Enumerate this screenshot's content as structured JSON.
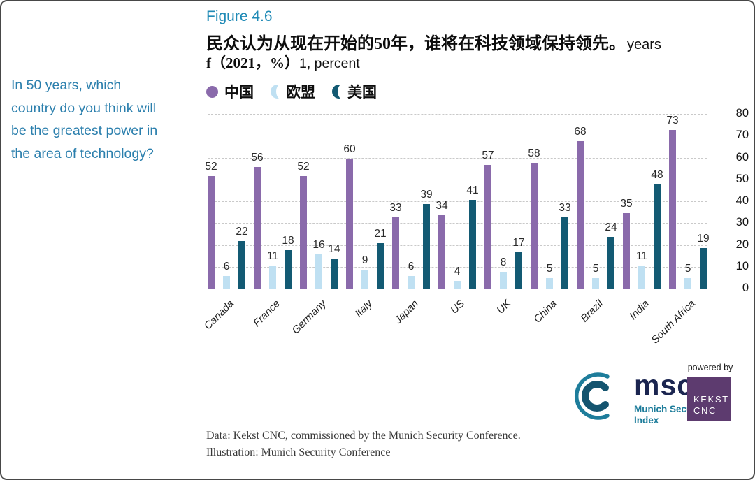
{
  "figure_label": "Figure 4.6",
  "title": {
    "line1_cn": "民众认为从现在开始的50年，谁将在科技领域保持领先。",
    "line1_en": "years",
    "line2_prefix": "f（2021，%）",
    "line2_suffix": "1, percent"
  },
  "sidebar": {
    "lines": [
      "In 50 years, which",
      "country do you think will",
      "be the greatest power in",
      "the area of technology?"
    ]
  },
  "chart_data": {
    "type": "bar",
    "title": "民众认为从现在开始的50年，谁将在科技领域保持领先。years f（2021，%）1, percent",
    "categories": [
      "Canada",
      "France",
      "Germany",
      "Italy",
      "Japan",
      "US",
      "UK",
      "China",
      "Brazil",
      "India",
      "South Africa"
    ],
    "series": [
      {
        "name": "中国",
        "color": "#8a6aab",
        "values": [
          52,
          56,
          52,
          60,
          33,
          34,
          57,
          58,
          68,
          35,
          73
        ]
      },
      {
        "name": "欧盟",
        "color": "#bfe0f2",
        "values": [
          6,
          11,
          16,
          9,
          6,
          4,
          8,
          5,
          5,
          11,
          5
        ]
      },
      {
        "name": "美国",
        "color": "#135a73",
        "values": [
          22,
          18,
          14,
          21,
          39,
          41,
          17,
          33,
          24,
          48,
          19
        ]
      }
    ],
    "xlabel": "",
    "ylabel": "",
    "ylim": [
      0,
      80
    ],
    "yticks": [
      0,
      10,
      20,
      30,
      40,
      50,
      60,
      70,
      80
    ],
    "ytick_side": "right",
    "grid": "horizontal-dashed",
    "data_labels": true,
    "legend_position": "top"
  },
  "footer": {
    "source_line1": "Data: Kekst CNC, commissioned by the Munich Security Conference.",
    "source_line2": "Illustration: Munich Security Conference",
    "powered_by": "powered by",
    "msc_logo": {
      "text": "msc",
      "subtext_line1": "Munich Security",
      "subtext_line2": "Index"
    },
    "kekst_logo": {
      "line1": "KEKST",
      "line2": "CNC"
    }
  },
  "colors": {
    "china_bar": "#8a6aab",
    "eu_bar": "#bfe0f2",
    "us_bar": "#135a73",
    "accent_teal_text": "#2b7fad",
    "figure_label_teal": "#1f8ab6",
    "kekst_purple": "#5d3b6f",
    "msc_navy": "#1b2550",
    "msc_teal": "#1e7d9b",
    "gridline": "#c9c9c9"
  }
}
